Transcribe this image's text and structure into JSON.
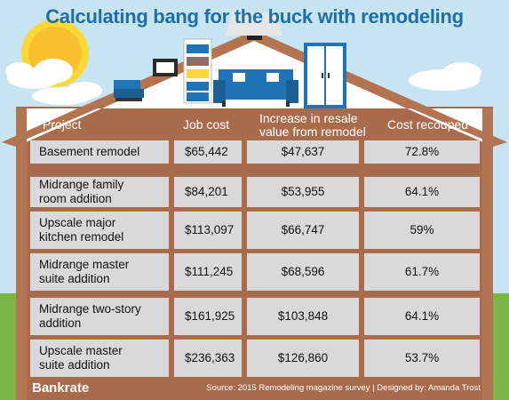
{
  "title": "Calculating bang for the buck with remodeling",
  "headers": {
    "project": "Project",
    "job_cost": "Job cost",
    "increase_line1": "Increase in resale",
    "increase_line2": "value from remodel",
    "recouped": "Cost recouped"
  },
  "rows": [
    {
      "project": [
        "Basement remodel"
      ],
      "job_cost": "$65,442",
      "increase": "$47,637",
      "recouped": "72.8%"
    },
    {
      "project": [
        "Midrange family",
        "room addition"
      ],
      "job_cost": "$84,201",
      "increase": "$53,955",
      "recouped": "64.1%"
    },
    {
      "project": [
        "Upscale major",
        "kitchen remodel"
      ],
      "job_cost": "$113,097",
      "increase": "$66,747",
      "recouped": "59%"
    },
    {
      "project": [
        "Midrange master",
        "suite addition"
      ],
      "job_cost": "$111,245",
      "increase": "$68,596",
      "recouped": "61.7%"
    },
    {
      "project": [
        "Midrange two-story",
        "addition"
      ],
      "job_cost": "$161,925",
      "increase": "$103,848",
      "recouped": "64.1%"
    },
    {
      "project": [
        "Upscale master",
        "suite addition"
      ],
      "job_cost": "$236,363",
      "increase": "$126,860",
      "recouped": "53.7%"
    }
  ],
  "brand": "Bankrate",
  "source": "Source: 2015 Remodeling magazine survey | Designed by: Amanda Trost",
  "colors": {
    "sky": "#c6e4f2",
    "roof": "#b27451",
    "wall": "#a86c4c",
    "cell": "#d9d9d9",
    "title": "#1f6ea5",
    "sofa": "#1f74b5",
    "grass": "#7ab648"
  },
  "icons": [
    "sun-icon",
    "cloud-icon",
    "picture-frame-icon",
    "bookshelf-icon",
    "sofa-icon",
    "armchair-icon",
    "ceiling-lamp-icon",
    "wardrobe-icon"
  ]
}
